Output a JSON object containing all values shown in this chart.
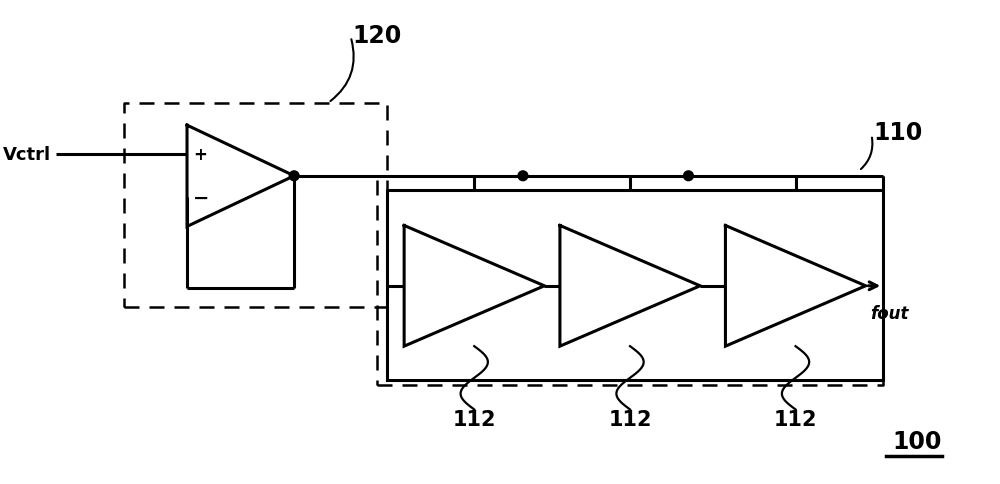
{
  "bg_color": "#ffffff",
  "line_color": "#000000",
  "label_vctrl": "Vctrl",
  "label_120": "120",
  "label_110": "110",
  "label_100": "100",
  "label_112": "112",
  "label_fout": "fout",
  "fig_width": 10.0,
  "fig_height": 4.85
}
